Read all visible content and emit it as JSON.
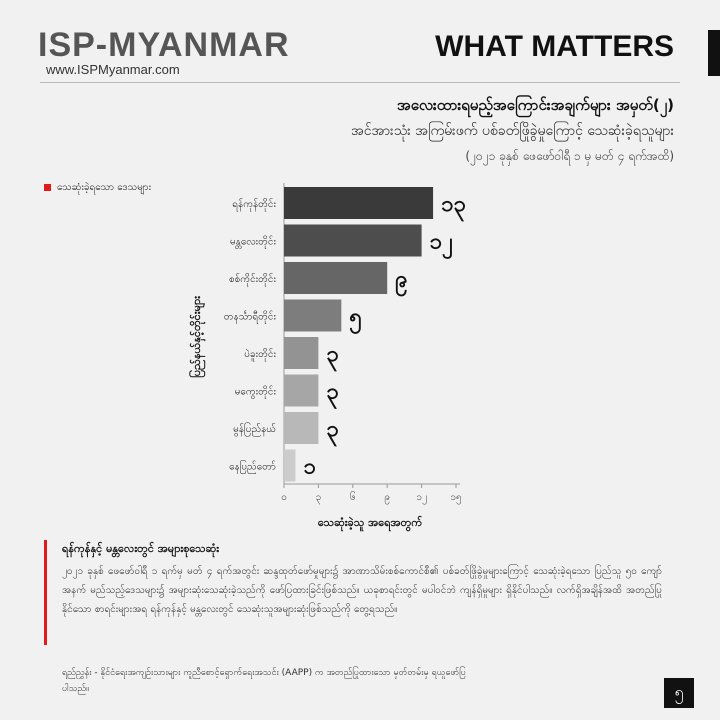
{
  "header": {
    "brand": "ISP-MYANMAR",
    "url": "www.ISPMyanmar.com",
    "section": "WHAT MATTERS"
  },
  "titles": {
    "main": "အလေးထားရမည့်အကြောင်းအချက်များ အမှတ်(၂)",
    "sub": "အင်အားသုံး အကြမ်းဖက် ပစ်ခတ်ဖြိုခွဲမှုကြောင့် သေဆုံးခဲ့ရသူများ",
    "date": "(၂၀၂၁ ခုနှစ် ဖေဖော်ဝါရီ ၁ မှ မတ် ၄ ရက်အထိ)"
  },
  "legend": {
    "label": "သေဆုံးခဲ့ရသော ဒေသများ",
    "color": "#e11a1a"
  },
  "chart_data": {
    "type": "bar",
    "orientation": "horizontal",
    "ylabel": "ပြည်နယ်နှင့်တိုင်းများ",
    "xlabel": "သေဆုံးခဲ့သူ အရေအတွက်",
    "xlim": [
      0,
      15
    ],
    "xticks": [
      0,
      3,
      6,
      9,
      12,
      15
    ],
    "xtick_labels": [
      "၀",
      "၃",
      "၆",
      "၉",
      "၁၂",
      "၁၅"
    ],
    "categories": [
      "ရန်ကုန်တိုင်း",
      "မန္တလေးတိုင်း",
      "စစ်ကိုင်းတိုင်း",
      "တနင်္သာရီတိုင်း",
      "ပဲခူးတိုင်း",
      "မကွေးတိုင်း",
      "မွန်ပြည်နယ်",
      "နေပြည်တော်"
    ],
    "values": [
      13,
      12,
      9,
      5,
      3,
      3,
      3,
      1
    ],
    "value_labels": [
      "၁၃",
      "၁၂",
      "၉",
      "၅",
      "၃",
      "၃",
      "၃",
      "၁"
    ],
    "bar_colors": [
      "#3a3a3a",
      "#4d4d4d",
      "#666666",
      "#7d7d7d",
      "#939393",
      "#a6a6a6",
      "#b8b8b8",
      "#cccccc"
    ],
    "grid": false
  },
  "note": {
    "title": "ရန်ကုန်နှင့် မန္တလေးတွင် အများစုသေဆုံး",
    "body": "၂၀၂၁ ခုနှစ် ဖေဖော်ဝါရီ ၁ ရက်မှ မတ် ၄ ရက်အတွင်း ဆန္ဒထုတ်ဖော်မှုများ၌ အာဏာသိမ်းစစ်ကောင်စီ၏ ပစ်ခတ်ဖြိုခွဲမှုများကြောင့် သေဆုံးခဲ့ရသော ပြည်သူ ၅၀ ကျော်အနက် မည်သည့်ဒေသများ၌ အများဆုံးသေဆုံးခဲ့သည်ကို ဖော်ပြထားခြင်းဖြစ်သည်။ ယခုစာရင်းတွင် မပါဝင်ဘဲ ကျန်ရှိမှုများ ရှိနိုင်ပါသည်။ လက်ရှိအချိန်အထိ အတည်ပြုနိုင်သော စာရင်းများအရ ရန်ကုန်နှင့် မန္တလေးတွင် သေဆုံးသူအများဆုံးဖြစ်သည်ကို တွေ့ရသည်။"
  },
  "source": "ရည်ညွှန်း - နိုင်ငံရေးအကျဉ်းသားများ ကူညီစောင့်ရှောက်ရေးအသင်း (AAPP) က အတည်ပြုထားသော မှတ်တမ်းမှ ရယူဖော်ပြပါသည်။",
  "page_number": "၅"
}
